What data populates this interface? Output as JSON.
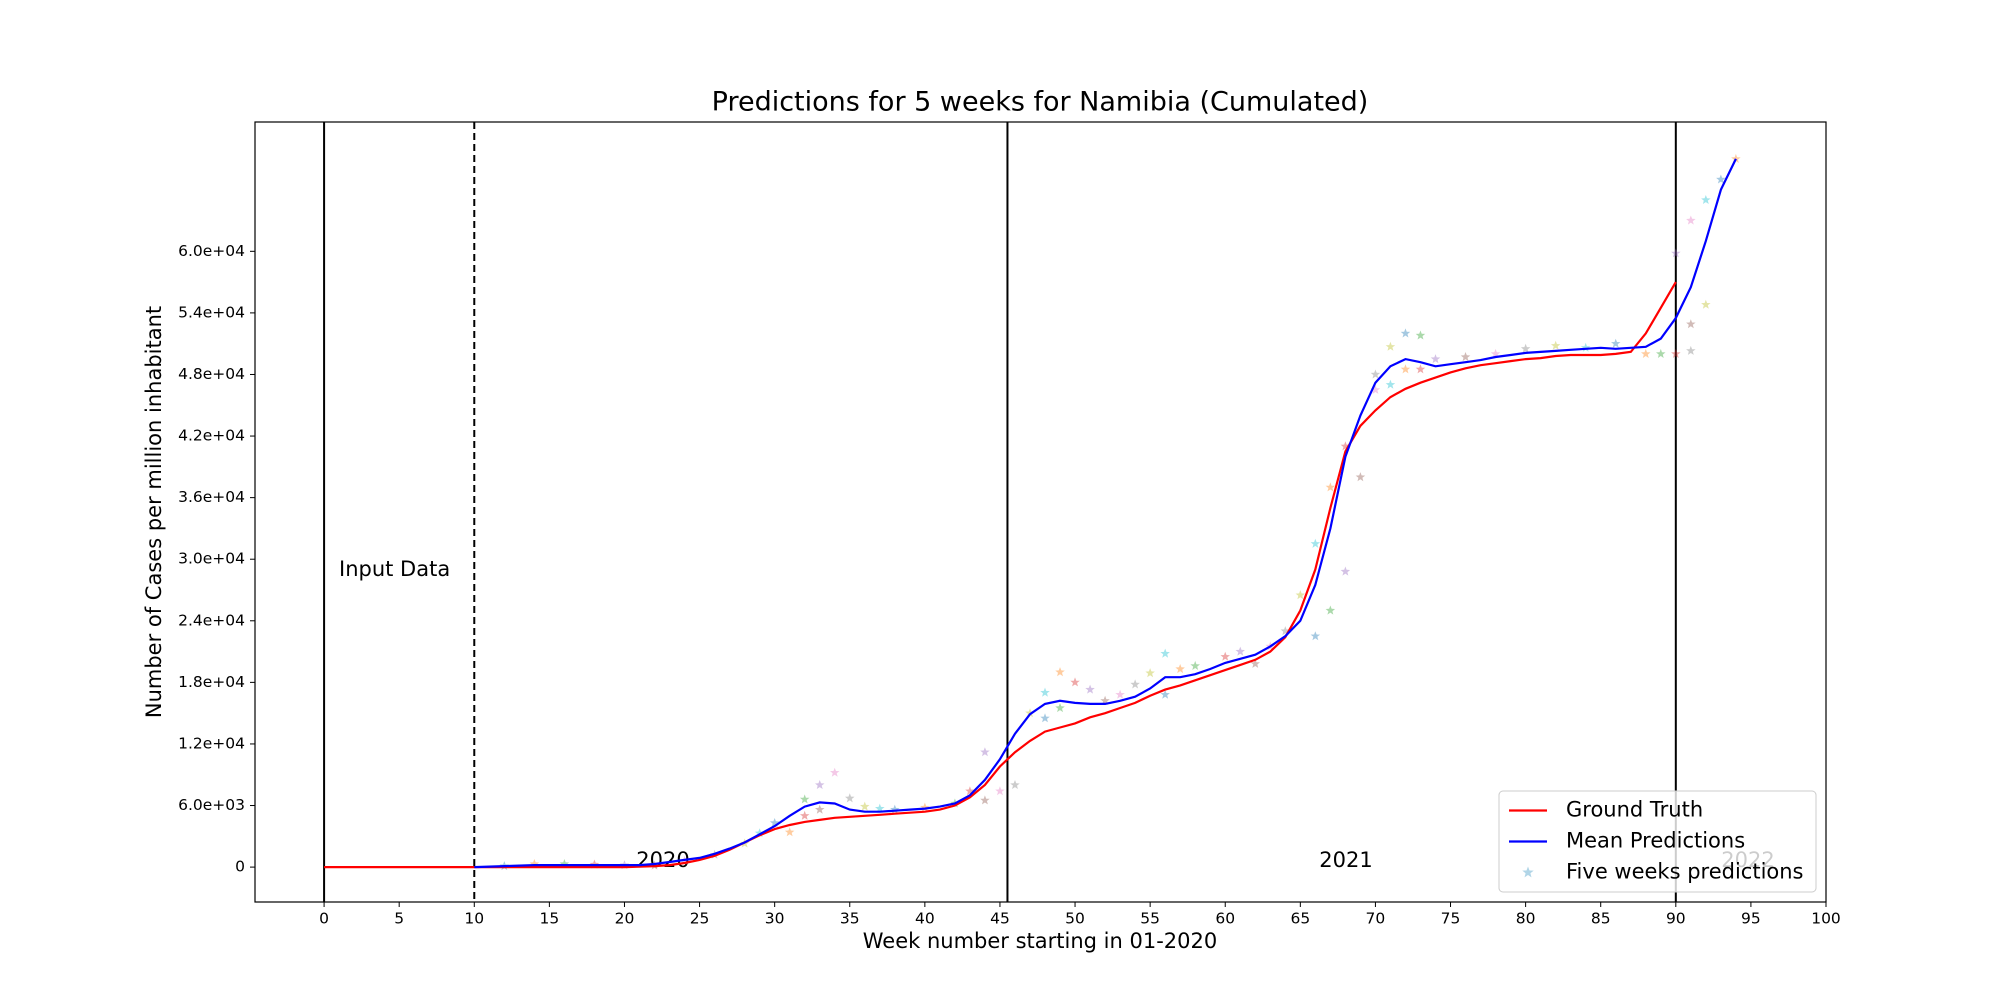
{
  "chart_data": {
    "type": "line",
    "title": "Predictions for 5 weeks for Namibia (Cumulated)",
    "x_label": "Week number starting in 01-2020",
    "y_label": "Number of Cases per million inhabitant",
    "xlim": [
      -4.6,
      100
    ],
    "ylim": [
      -3400,
      72600
    ],
    "xticks": [
      0,
      5,
      10,
      15,
      20,
      25,
      30,
      35,
      40,
      45,
      50,
      55,
      60,
      65,
      70,
      75,
      80,
      85,
      90,
      95,
      100
    ],
    "yticks": [
      0,
      {
        "value": 6000,
        "label": "6.0e+03"
      },
      {
        "value": 12000,
        "label": "1.2e+04"
      },
      {
        "value": 18000,
        "label": "1.8e+04"
      },
      {
        "value": 24000,
        "label": "2.4e+04"
      },
      {
        "value": 30000,
        "label": "3.0e+04"
      },
      {
        "value": 36000,
        "label": "3.6e+04"
      },
      {
        "value": 42000,
        "label": "4.2e+04"
      },
      {
        "value": 48000,
        "label": "4.8e+04"
      },
      {
        "value": 54000,
        "label": "5.4e+04"
      },
      {
        "value": 60000,
        "label": "6.0e+04"
      }
    ],
    "grid": false,
    "legend_position": "lower right",
    "vlines": [
      {
        "x": 0,
        "style": "solid"
      },
      {
        "x": 10,
        "style": "dashed"
      },
      {
        "x": 45.5,
        "style": "solid"
      },
      {
        "x": 90,
        "style": "solid"
      }
    ],
    "annotations": [
      {
        "text": "Input Data"
      },
      {
        "text": "2020"
      },
      {
        "text": "2021"
      },
      {
        "text": "2022"
      }
    ],
    "series": [
      {
        "name": "Ground Truth",
        "color": "#ff0000",
        "x": [
          0,
          1,
          2,
          3,
          4,
          5,
          6,
          7,
          8,
          9,
          10,
          11,
          12,
          13,
          14,
          15,
          16,
          17,
          18,
          19,
          20,
          21,
          22,
          23,
          24,
          25,
          26,
          27,
          28,
          29,
          30,
          31,
          32,
          33,
          34,
          35,
          36,
          37,
          38,
          39,
          40,
          41,
          42,
          43,
          44,
          45,
          46,
          47,
          48,
          49,
          50,
          51,
          52,
          53,
          54,
          55,
          56,
          57,
          58,
          59,
          60,
          61,
          62,
          63,
          64,
          65,
          66,
          67,
          68,
          69,
          70,
          71,
          72,
          73,
          74,
          75,
          76,
          77,
          78,
          79,
          80,
          81,
          82,
          83,
          84,
          85,
          86,
          87,
          88,
          89,
          90
        ],
        "values": [
          0,
          0,
          0,
          0,
          0,
          0,
          0,
          0,
          0,
          0,
          0,
          0,
          0,
          0,
          0,
          0,
          0,
          0,
          0,
          0,
          0,
          50,
          100,
          200,
          400,
          700,
          1100,
          1700,
          2400,
          3100,
          3700,
          4100,
          4400,
          4600,
          4800,
          4900,
          5000,
          5100,
          5200,
          5300,
          5400,
          5600,
          6000,
          6800,
          8000,
          9800,
          11200,
          12300,
          13200,
          13600,
          14000,
          14600,
          15000,
          15500,
          16000,
          16700,
          17300,
          17700,
          18200,
          18700,
          19200,
          19700,
          20200,
          21000,
          22400,
          25000,
          29000,
          35000,
          40500,
          43000,
          44500,
          45800,
          46600,
          47200,
          47700,
          48200,
          48600,
          48900,
          49100,
          49300,
          49500,
          49600,
          49800,
          49900,
          49900,
          49900,
          50000,
          50200,
          52000,
          54500,
          57000
        ]
      },
      {
        "name": "Mean Predictions",
        "color": "#0000ff",
        "x": [
          10,
          11,
          12,
          13,
          14,
          15,
          16,
          17,
          18,
          19,
          20,
          21,
          22,
          23,
          24,
          25,
          26,
          27,
          28,
          29,
          30,
          31,
          32,
          33,
          34,
          35,
          36,
          37,
          38,
          39,
          40,
          41,
          42,
          43,
          44,
          45,
          46,
          47,
          48,
          49,
          50,
          51,
          52,
          53,
          54,
          55,
          56,
          57,
          58,
          59,
          60,
          61,
          62,
          63,
          64,
          65,
          66,
          67,
          68,
          69,
          70,
          71,
          72,
          73,
          74,
          75,
          76,
          77,
          78,
          79,
          80,
          81,
          82,
          83,
          84,
          85,
          86,
          87,
          88,
          89,
          90,
          91,
          92,
          93,
          94
        ],
        "values": [
          0,
          50,
          100,
          150,
          200,
          200,
          200,
          200,
          200,
          200,
          200,
          200,
          300,
          500,
          700,
          900,
          1300,
          1800,
          2400,
          3200,
          4000,
          5000,
          5900,
          6300,
          6200,
          5600,
          5400,
          5400,
          5500,
          5600,
          5700,
          5900,
          6200,
          7000,
          8500,
          10500,
          13000,
          14900,
          15900,
          16200,
          16000,
          15900,
          15900,
          16200,
          16600,
          17400,
          18500,
          18500,
          18800,
          19300,
          19900,
          20300,
          20700,
          21500,
          22500,
          24000,
          27500,
          33000,
          40000,
          44000,
          47200,
          48800,
          49500,
          49200,
          48800,
          49000,
          49200,
          49400,
          49700,
          49900,
          50100,
          50200,
          50300,
          50400,
          50500,
          50600,
          50500,
          50600,
          50700,
          51500,
          53500,
          56500,
          61000,
          66000,
          69000
        ]
      },
      {
        "name": "Five weeks predictions",
        "color": "#9ecae1",
        "marker": "star",
        "palette": [
          "#1f77b4",
          "#ff7f0e",
          "#2ca02c",
          "#d62728",
          "#9467bd",
          "#8c564b",
          "#e377c2",
          "#7f7f7f",
          "#bcbd22",
          "#17becf"
        ],
        "x": [
          12,
          14,
          16,
          18,
          20,
          22,
          24,
          26,
          28,
          29,
          30,
          31,
          32,
          32,
          33,
          33,
          34,
          35,
          36,
          37,
          38,
          40,
          42,
          43,
          44,
          44,
          45,
          46,
          47,
          48,
          48,
          49,
          49,
          50,
          51,
          52,
          53,
          54,
          55,
          56,
          56,
          57,
          58,
          60,
          61,
          62,
          63,
          64,
          65,
          66,
          66,
          67,
          67,
          68,
          68,
          69,
          70,
          70,
          71,
          71,
          72,
          72,
          73,
          73,
          74,
          76,
          78,
          80,
          82,
          84,
          86,
          88,
          89,
          90,
          90,
          91,
          91,
          91,
          92,
          92,
          93,
          94
        ],
        "values": [
          100,
          300,
          300,
          250,
          200,
          150,
          600,
          1200,
          2300,
          3300,
          4300,
          3400,
          6600,
          5000,
          8000,
          5600,
          9200,
          6700,
          5900,
          5700,
          5600,
          5800,
          6200,
          7400,
          11200,
          6500,
          7400,
          8000,
          15000,
          17000,
          14500,
          19000,
          15500,
          18000,
          17300,
          16200,
          16800,
          17800,
          18900,
          20800,
          16800,
          19300,
          19600,
          20500,
          21000,
          19800,
          21500,
          23000,
          26500,
          31500,
          22500,
          37000,
          25000,
          41000,
          28800,
          38000,
          46500,
          48000,
          50700,
          47000,
          52000,
          48500,
          51800,
          48500,
          49500,
          49700,
          50000,
          50500,
          50800,
          50600,
          51000,
          50000,
          50000,
          50000,
          59800,
          52900,
          63000,
          50300,
          54800,
          65000,
          67000,
          69000
        ]
      }
    ]
  }
}
